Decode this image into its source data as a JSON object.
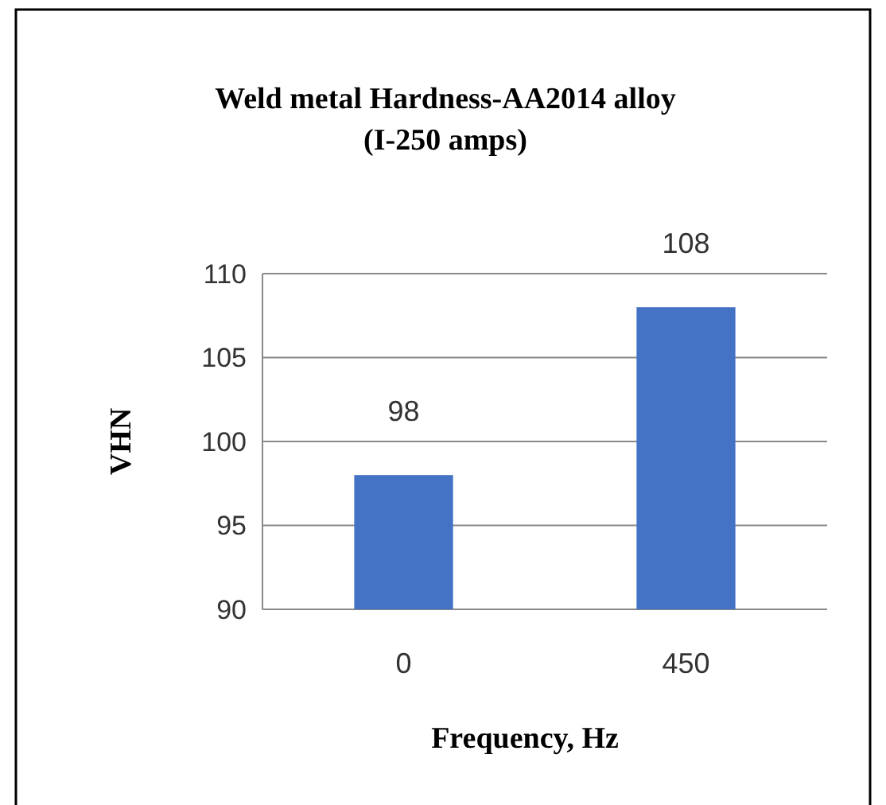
{
  "chart_data": {
    "type": "bar",
    "title": "Weld metal Hardness-AA2014 alloy\n(I-250 amps)",
    "xlabel": "Frequency, Hz",
    "ylabel": "VHN",
    "categories": [
      "0",
      "450"
    ],
    "values": [
      98,
      108
    ],
    "color": "#4472c4",
    "ylim": [
      90,
      110
    ],
    "yticks": [
      90,
      95,
      100,
      105,
      110
    ],
    "grid": "y",
    "data_labels": true
  }
}
